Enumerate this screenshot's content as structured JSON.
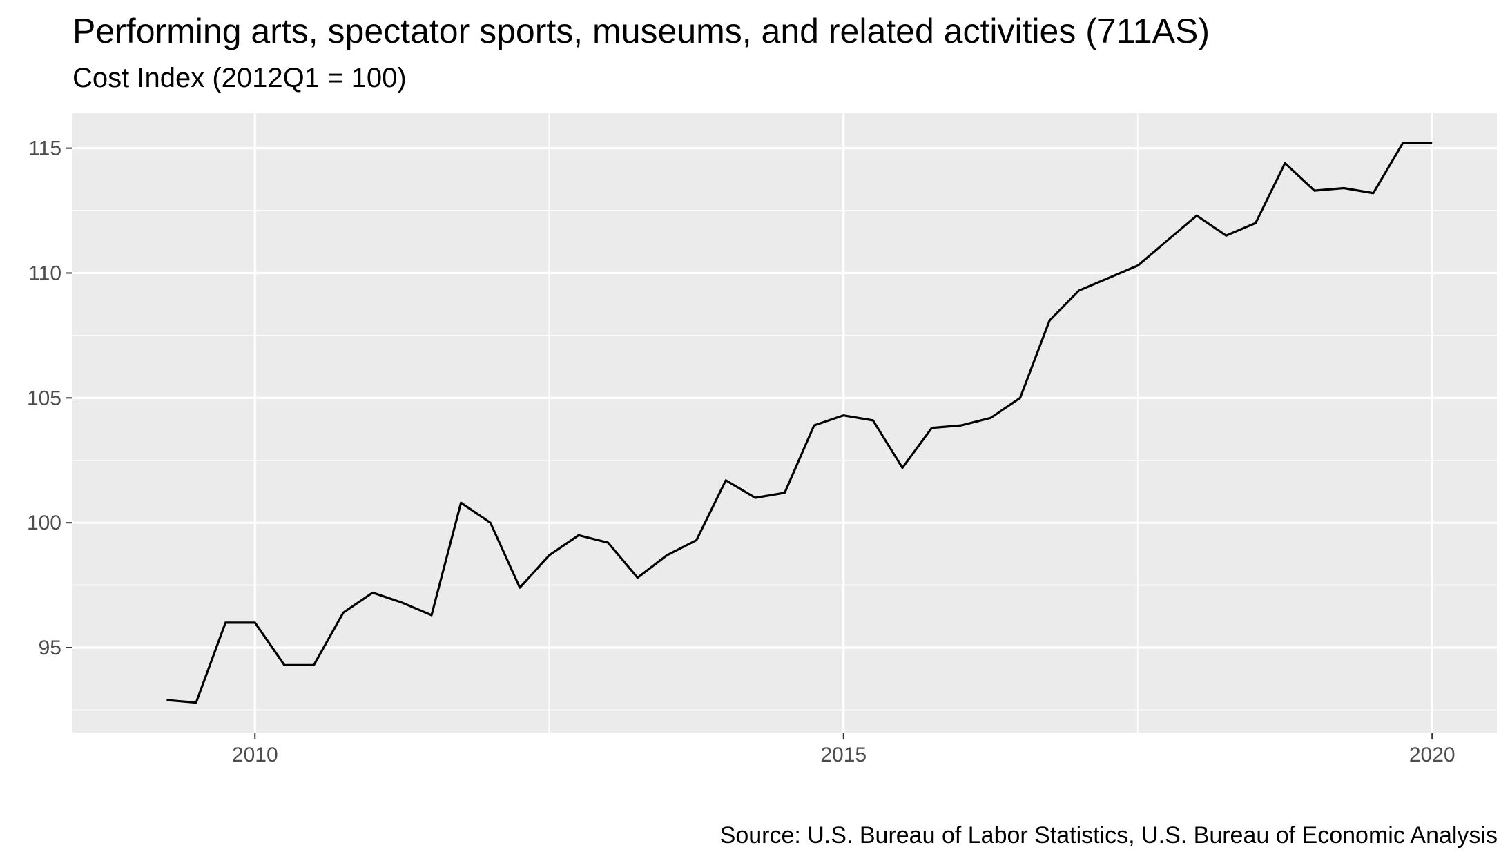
{
  "chart_data": {
    "type": "line",
    "title": "Performing arts, spectator sports, museums, and related activities (711AS)",
    "subtitle": "Cost Index (2012Q1 = 100)",
    "caption": "Source: U.S. Bureau of Labor Statistics, U.S. Bureau of Economic Analysis",
    "xlabel": "",
    "ylabel": "",
    "xlim": [
      2008.45,
      2020.55
    ],
    "ylim": [
      91.6,
      116.4
    ],
    "x_ticks": [
      2010,
      2015,
      2020
    ],
    "y_ticks": [
      95,
      100,
      105,
      110,
      115
    ],
    "grid": true,
    "series": [
      {
        "x": [
          2009.25,
          2009.5,
          2009.75,
          2010.0,
          2010.25,
          2010.5,
          2010.75,
          2011.0,
          2011.25,
          2011.5,
          2011.75,
          2012.0,
          2012.25,
          2012.5,
          2012.75,
          2013.0,
          2013.25,
          2013.5,
          2013.75,
          2014.0,
          2014.25,
          2014.5,
          2014.75,
          2015.0,
          2015.25,
          2015.5,
          2015.75,
          2016.0,
          2016.25,
          2016.5,
          2016.75,
          2017.0,
          2017.25,
          2017.5,
          2017.75,
          2018.0,
          2018.25,
          2018.5,
          2018.75,
          2019.0,
          2019.25,
          2019.5,
          2019.75,
          2020.0
        ],
        "y": [
          92.9,
          92.8,
          96.0,
          96.0,
          94.3,
          94.3,
          96.4,
          97.2,
          96.8,
          96.3,
          100.8,
          100.0,
          97.4,
          98.7,
          99.5,
          99.2,
          97.8,
          98.7,
          99.3,
          101.7,
          101.0,
          101.2,
          103.9,
          104.3,
          104.1,
          102.2,
          103.8,
          103.9,
          104.2,
          105.0,
          108.1,
          109.3,
          109.8,
          110.3,
          111.3,
          112.3,
          111.5,
          112.0,
          114.4,
          113.3,
          113.4,
          113.2,
          115.2,
          115.2
        ],
        "color": "#000000"
      }
    ],
    "colors": {
      "panel": "#ebebeb",
      "grid": "#ffffff",
      "tick_text": "#4d4d4d",
      "line": "#000000"
    }
  }
}
